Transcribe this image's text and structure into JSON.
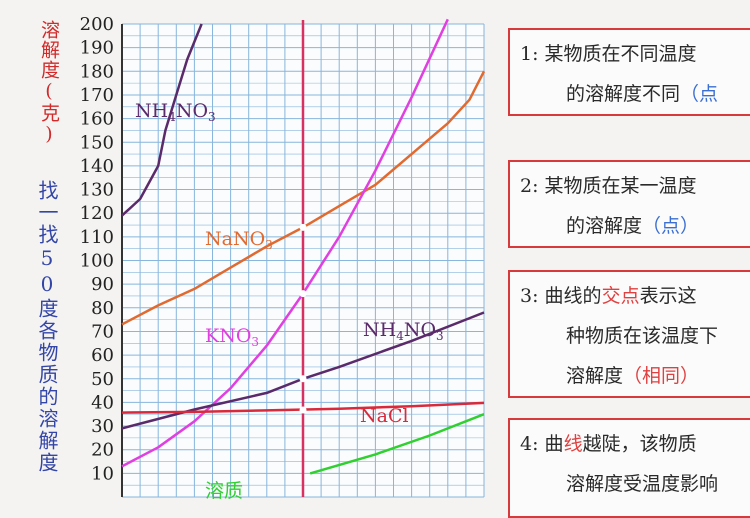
{
  "colors": {
    "grid": "#88b6dc",
    "axis": "#333333",
    "nh4no3": "#5a2a6a",
    "nano3": "#e06a30",
    "kno3": "#e040e0",
    "nacl": "#d82a3a",
    "limewater": "#30d030",
    "vertical_line": "#d83060",
    "note_border": "#d63a3a",
    "blue_text": "#3b6fd1",
    "red_text": "#e04040"
  },
  "ylabel": "溶解度(克)",
  "hint": "找一找50度各物质的溶解度",
  "chart_data": {
    "type": "line",
    "xlim": [
      0,
      100
    ],
    "ylim": [
      0,
      200
    ],
    "y_ticks": [
      10,
      20,
      30,
      40,
      50,
      60,
      70,
      80,
      90,
      100,
      110,
      120,
      130,
      140,
      150,
      160,
      170,
      180,
      190,
      200
    ],
    "marker_x": 50,
    "series": [
      {
        "name": "NH4NO3",
        "label_main": "NH",
        "label_sub": "4",
        "label_end": "NO",
        "label_sub2": "3",
        "color_key": "nh4no3",
        "points": [
          [
            0,
            119
          ],
          [
            5,
            126
          ],
          [
            10,
            140
          ],
          [
            12,
            155
          ],
          [
            15,
            170
          ],
          [
            18,
            185
          ],
          [
            22,
            200
          ]
        ]
      },
      {
        "name": "NaNO3",
        "label_main": "NaNO",
        "label_sub": "3",
        "color_key": "nano3",
        "points": [
          [
            0,
            73
          ],
          [
            10,
            81
          ],
          [
            20,
            88
          ],
          [
            30,
            97
          ],
          [
            40,
            106
          ],
          [
            50,
            114
          ],
          [
            60,
            123
          ],
          [
            70,
            132
          ],
          [
            80,
            145
          ],
          [
            90,
            158
          ],
          [
            96,
            168
          ],
          [
            100,
            180
          ]
        ]
      },
      {
        "name": "KNO3",
        "label_main": "KNO",
        "label_sub": "3",
        "color_key": "kno3",
        "points": [
          [
            0,
            13
          ],
          [
            10,
            21
          ],
          [
            20,
            32
          ],
          [
            30,
            46
          ],
          [
            40,
            64
          ],
          [
            50,
            86
          ],
          [
            60,
            110
          ],
          [
            70,
            138
          ],
          [
            80,
            169
          ],
          [
            90,
            202
          ]
        ]
      },
      {
        "name": "NH4NO3 (lower)",
        "label_main": "NH",
        "label_sub": "4",
        "label_end": "NO",
        "label_sub2": "3",
        "color_key": "nh4no3",
        "points": [
          [
            0,
            29
          ],
          [
            20,
            37
          ],
          [
            40,
            44
          ],
          [
            50,
            50
          ],
          [
            60,
            55
          ],
          [
            80,
            66
          ],
          [
            100,
            78
          ]
        ]
      },
      {
        "name": "NaCl",
        "label_main": "NaCl",
        "label_sub": "",
        "color_key": "nacl",
        "points": [
          [
            0,
            35.7
          ],
          [
            20,
            36
          ],
          [
            40,
            36.6
          ],
          [
            60,
            37.3
          ],
          [
            80,
            38.4
          ],
          [
            100,
            39.8
          ]
        ]
      },
      {
        "name": "limewater",
        "label_main": "溶质",
        "label_sub": "",
        "color_key": "limewater",
        "points": [
          [
            52,
            10
          ],
          [
            70,
            18
          ],
          [
            85,
            26
          ],
          [
            100,
            35
          ]
        ]
      }
    ]
  },
  "notes": [
    {
      "num": "1:",
      "line1": "某物质在不同温度",
      "line2a": "的溶解度不同",
      "hl": "（点",
      "hl_class": "blue"
    },
    {
      "num": "2:",
      "line1": "某物质在某一温度",
      "line2a": "的溶解度",
      "hl": "（点）",
      "hl_class": "blue"
    },
    {
      "num": "3:",
      "line1a": "曲线的",
      "line1hl": "交点",
      "line1b": "表示这",
      "line2a": "种物质在该温度下",
      "line3a": "溶解度",
      "hl": "（相同）",
      "hl_class": "red"
    },
    {
      "num": "4:",
      "line1a": "曲",
      "line1hl": "线",
      "line1b": "越陡，该物质",
      "line2a": "溶解度受温度影响"
    }
  ]
}
